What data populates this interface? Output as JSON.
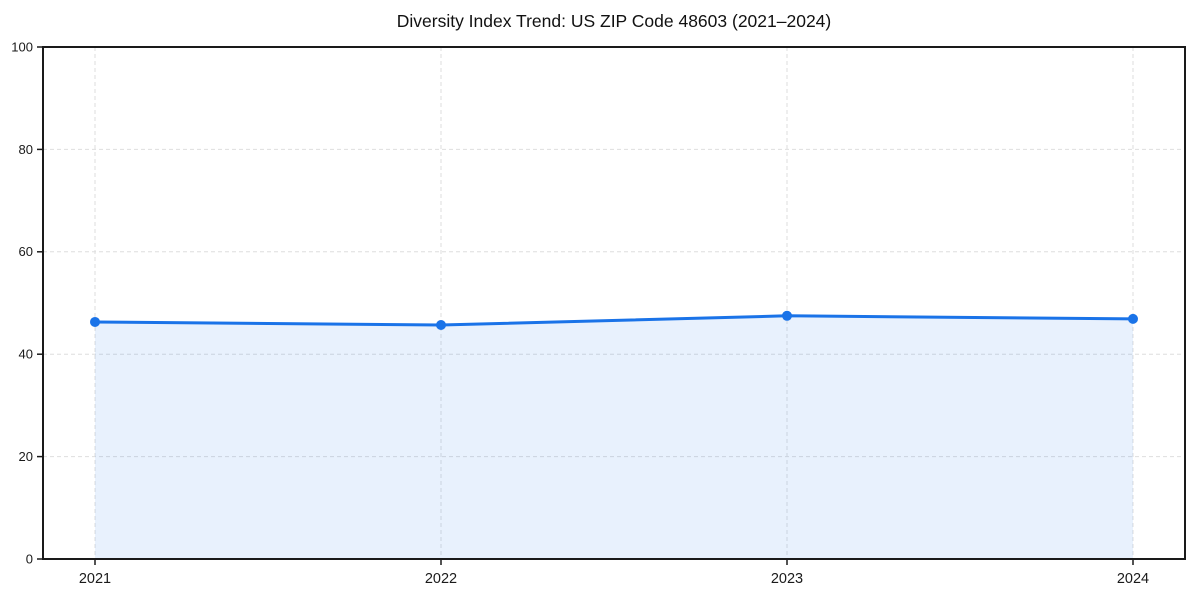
{
  "chart_data": {
    "type": "area",
    "title": "Diversity Index Trend: US ZIP Code 48603 (2021–2024)",
    "categories": [
      "2021",
      "2022",
      "2023",
      "2024"
    ],
    "series": [
      {
        "name": "Diversity Index",
        "values": [
          46.3,
          45.7,
          47.5,
          46.9
        ]
      }
    ],
    "xlabel": "",
    "ylabel": "",
    "ylim": [
      0,
      100
    ],
    "yticks": [
      0,
      20,
      40,
      60,
      80,
      100
    ],
    "grid": "dashed",
    "legend_position": "none",
    "marker": "circle",
    "line_color": "#1a73e8",
    "marker_color": "#1a73e8",
    "fill_color": "#1a73e8",
    "fill_opacity": 0.1,
    "grid_color": "#dedede",
    "axis_color": "#1a1a1a",
    "tick_label_color": "#1a1a1a",
    "title_color": "#111111",
    "background_color": "#ffffff"
  }
}
